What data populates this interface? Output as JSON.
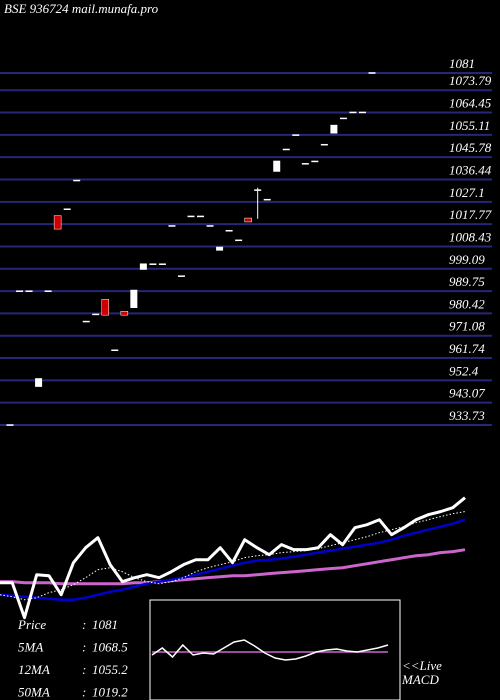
{
  "chart_data": [
    {
      "type": "candlestick",
      "title": "BSE 936724 mail.munafa.pro",
      "open": [
        933.7,
        989.7,
        989.7,
        950,
        989.7,
        1021,
        1024,
        1036,
        977,
        980,
        986,
        965,
        981,
        983,
        999,
        1001,
        1001,
        1017,
        996,
        1021,
        1021,
        1017,
        1007,
        1015,
        1011,
        1020,
        1032,
        1028,
        1040,
        1049,
        1055,
        1043,
        1044,
        1051,
        1056,
        1062,
        1064.5,
        1064.5,
        1081
      ],
      "high": [
        933.7,
        989.7,
        989.7,
        953,
        989.7,
        1021,
        1024,
        1036,
        977,
        980,
        986,
        965,
        981,
        990,
        1001,
        1001,
        1001,
        1017,
        996,
        1021,
        1021,
        1017,
        1008,
        1015,
        1011,
        1020,
        1033,
        1028,
        1044,
        1049,
        1055,
        1043,
        1044,
        1051,
        1059,
        1062,
        1064.5,
        1064.5,
        1081
      ],
      "low": [
        933.7,
        989.7,
        989.7,
        950,
        989.7,
        1016,
        1024,
        1036,
        977,
        980,
        980,
        965,
        980,
        983,
        999,
        1001,
        1001,
        1017,
        996,
        1021,
        1021,
        1017,
        1007,
        1015,
        1011,
        1019,
        1020,
        1028,
        1040,
        1049,
        1055,
        1043,
        1044,
        1051,
        1056,
        1062,
        1064.5,
        1064.5,
        1081
      ],
      "close": [
        933.7,
        989.7,
        989.7,
        953,
        989.7,
        1016,
        1024,
        1036,
        977,
        980,
        980,
        965,
        980,
        990,
        1001,
        1001,
        1001,
        1017,
        996,
        1021,
        1021,
        1017,
        1008,
        1015,
        1011,
        1019,
        1032,
        1028,
        1044,
        1049,
        1055,
        1043,
        1044,
        1051,
        1059,
        1062,
        1064.5,
        1064.5,
        1081
      ],
      "up_color": "#ffffff",
      "down_color": "#cc0000",
      "grid": true,
      "grid_color": "#26267a",
      "ylim": [
        933.73,
        1081
      ],
      "yticks": [
        1081,
        1073.79,
        1064.45,
        1055.11,
        1045.78,
        1036.44,
        1027.1,
        1017.77,
        1008.43,
        999.09,
        989.75,
        980.42,
        971.08,
        961.74,
        952.4,
        943.07,
        933.73
      ]
    },
    {
      "type": "line",
      "ylim": [
        928,
        1100
      ],
      "series": [
        {
          "color": "#ffffff",
          "style": "solid",
          "width": 3,
          "values": [
            989.6,
            989.6,
            952,
            998.2,
            997.1,
            976.7,
            1011.1,
            1027.2,
            1038,
            1009,
            990.7,
            995,
            998.2,
            995,
            1001.4,
            1009,
            1014.3,
            1014.3,
            1027.2,
            1011.1,
            1035.8,
            1027.2,
            1019.7,
            1030.5,
            1025.1,
            1025.1,
            1027.2,
            1041.2,
            1030.5,
            1048.7,
            1052,
            1057.3,
            1041.2,
            1048.7,
            1057.3,
            1062.7,
            1066,
            1070.2,
            1081
          ]
        },
        {
          "color": "#ffffff",
          "style": "dotted",
          "width": 1,
          "values": [
            976.7,
            974.5,
            971.3,
            973.5,
            978.9,
            982.1,
            987.4,
            995,
            1003.6,
            1005.7,
            1001.4,
            995,
            990.7,
            988.5,
            990.7,
            995,
            1001.4,
            1005.7,
            1009,
            1012.2,
            1016.5,
            1018.6,
            1019.7,
            1021.9,
            1023,
            1024,
            1026.2,
            1029.4,
            1032.6,
            1035.8,
            1039.1,
            1043.4,
            1046.6,
            1049.8,
            1054.1,
            1057.3,
            1060.6,
            1063.8,
            1066
          ]
        },
        {
          "color": "#0000cc",
          "style": "solid",
          "width": 2.5,
          "values": [
            976.7,
            975.6,
            974.5,
            973.5,
            972.4,
            971.3,
            971.3,
            973.5,
            976.7,
            979.9,
            982.1,
            985.3,
            988.5,
            990.7,
            992.8,
            995,
            998.2,
            1001.4,
            1004.7,
            1007.9,
            1011.1,
            1013.3,
            1014.3,
            1015.4,
            1017.6,
            1019.7,
            1021.9,
            1024,
            1026.2,
            1028.3,
            1030.5,
            1032.6,
            1035.8,
            1040.1,
            1043.4,
            1046.6,
            1049.8,
            1053,
            1057.3
          ]
        },
        {
          "color": "#cc66cc",
          "style": "solid",
          "width": 3,
          "values": [
            990.7,
            990.7,
            989.6,
            989.6,
            989.6,
            988.5,
            988.5,
            988.5,
            988.5,
            988.5,
            988.5,
            989.6,
            989.6,
            990.7,
            991.7,
            992.8,
            993.9,
            995,
            996,
            997.1,
            997.1,
            998.2,
            999.3,
            1000.4,
            1001.4,
            1002.5,
            1003.6,
            1004.7,
            1005.7,
            1007.9,
            1010,
            1012.2,
            1014.3,
            1016.5,
            1018.6,
            1019.7,
            1021.9,
            1023,
            1025.1
          ]
        }
      ],
      "legend": [
        {
          "label": "Price",
          "value": 1081
        },
        {
          "label": "5MA",
          "value": 1068.5
        },
        {
          "label": "12MA",
          "value": 1055.2
        },
        {
          "label": "50MA",
          "value": 1019.2
        }
      ]
    },
    {
      "type": "macd",
      "ylim": [
        -10,
        10
      ],
      "label": [
        "<<Live",
        "MACD"
      ],
      "series": [
        {
          "color": "#ffffff",
          "values": [
            -1,
            0.4,
            -1.4,
            1,
            -1,
            -0.6,
            -0.8,
            0.4,
            1.6,
            2,
            0.8,
            -0.6,
            -1.6,
            -2,
            -1.8,
            -1.2,
            -0.4,
            0,
            0.2,
            -0.2,
            -0.4,
            0,
            0.4,
            1
          ]
        },
        {
          "color": "#cc66cc",
          "values": [
            -0.4,
            -0.4,
            -0.4,
            -0.4,
            -0.4,
            -0.4,
            -0.4,
            -0.4,
            -0.4,
            -0.4,
            -0.4,
            -0.4,
            -0.4,
            -0.4,
            -0.4,
            -0.4,
            -0.4,
            -0.4,
            -0.4,
            -0.4,
            -0.4,
            -0.4,
            -0.4,
            -0.4
          ]
        }
      ]
    }
  ]
}
